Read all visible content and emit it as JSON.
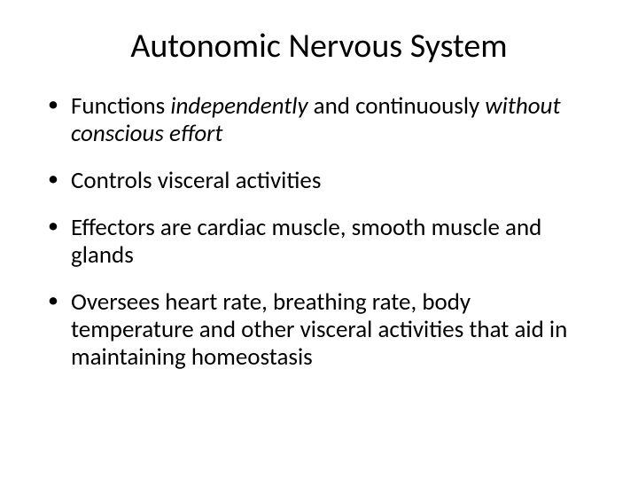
{
  "slide": {
    "title": "Autonomic Nervous System",
    "title_fontsize": 38,
    "body_fontsize": 27,
    "background_color": "#ffffff",
    "text_color": "#000000",
    "bullets": [
      {
        "segments": [
          {
            "text": "Functions ",
            "italic": false
          },
          {
            "text": "independently ",
            "italic": true
          },
          {
            "text": "and continuously ",
            "italic": false
          },
          {
            "text": "without conscious effort",
            "italic": true
          }
        ]
      },
      {
        "segments": [
          {
            "text": "Controls visceral activities",
            "italic": false
          }
        ]
      },
      {
        "segments": [
          {
            "text": "Effectors are cardiac muscle, smooth muscle and glands",
            "italic": false
          }
        ]
      },
      {
        "segments": [
          {
            "text": "Oversees heart rate, breathing rate, body temperature and other visceral activities that aid in maintaining homeostasis",
            "italic": false
          }
        ]
      }
    ]
  }
}
